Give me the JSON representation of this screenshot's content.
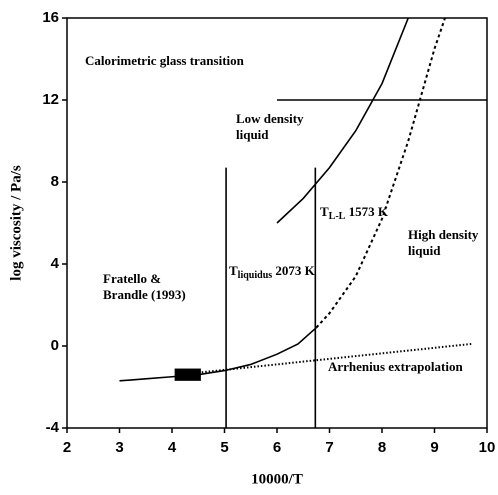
{
  "chart_data": {
    "type": "line",
    "xlabel": "10000/T",
    "ylabel": "log viscosity / Pa/s",
    "xlim": [
      2,
      10
    ],
    "ylim": [
      -4,
      16
    ],
    "xticks": [
      2,
      3,
      4,
      5,
      6,
      7,
      8,
      9,
      10
    ],
    "yticks": [
      -4,
      0,
      4,
      8,
      12,
      16
    ],
    "series": [
      {
        "color": "#000000",
        "dash": "solid",
        "x": [
          6,
          6.5,
          7,
          7.5,
          8,
          8.5
        ],
        "values": [
          6,
          7.2,
          8.7,
          10.5,
          12.8,
          16
        ]
      },
      {
        "color": "#000000",
        "dash": "solid",
        "x": [
          3,
          3.5,
          4,
          4.5,
          5,
          5.5,
          6,
          6.4,
          6.75
        ],
        "values": [
          -1.7,
          -1.6,
          -1.5,
          -1.4,
          -1.2,
          -0.9,
          -0.4,
          0.1,
          0.9
        ]
      },
      {
        "color": "#000000",
        "dash": "dashed",
        "x": [
          6.75,
          7,
          7.5,
          8,
          8.5,
          9,
          9.2
        ],
        "values": [
          0.9,
          1.6,
          3.4,
          6.2,
          10,
          14.5,
          16
        ]
      },
      {
        "color": "#000000",
        "dash": "dotted",
        "x": [
          4.5,
          9.7
        ],
        "values": [
          -1.3,
          0.1
        ]
      },
      {
        "color": "#000000",
        "dash": "solid",
        "x": [
          6,
          10
        ],
        "values": [
          12,
          12
        ]
      },
      {
        "color": "#000000",
        "dash": "solid",
        "x": [
          5.03,
          5.03
        ],
        "values": [
          -4,
          8.7
        ]
      },
      {
        "color": "#000000",
        "dash": "solid",
        "x": [
          6.73,
          6.73
        ],
        "values": [
          -4,
          8.7
        ]
      }
    ],
    "markers": [
      {
        "color": "#000000",
        "x": [
          4.05,
          4.55
        ],
        "y": [
          -1.7,
          -1.1
        ]
      }
    ],
    "annotations": [
      {
        "lines": [
          "Calorimetric glass transition"
        ]
      },
      {
        "lines": [
          "Low density",
          "liquid"
        ]
      },
      {
        "text": "T",
        "sub": "L-L",
        "suffix": " 1573 K"
      },
      {
        "lines": [
          "High density",
          "liquid"
        ]
      },
      {
        "lines": [
          "Fratello &",
          "Brandle (1993)"
        ]
      },
      {
        "text": "T",
        "sub": "liquidus",
        "suffix": " 2073 K"
      },
      {
        "lines": [
          "Arrhenius extrapolation"
        ]
      }
    ]
  }
}
